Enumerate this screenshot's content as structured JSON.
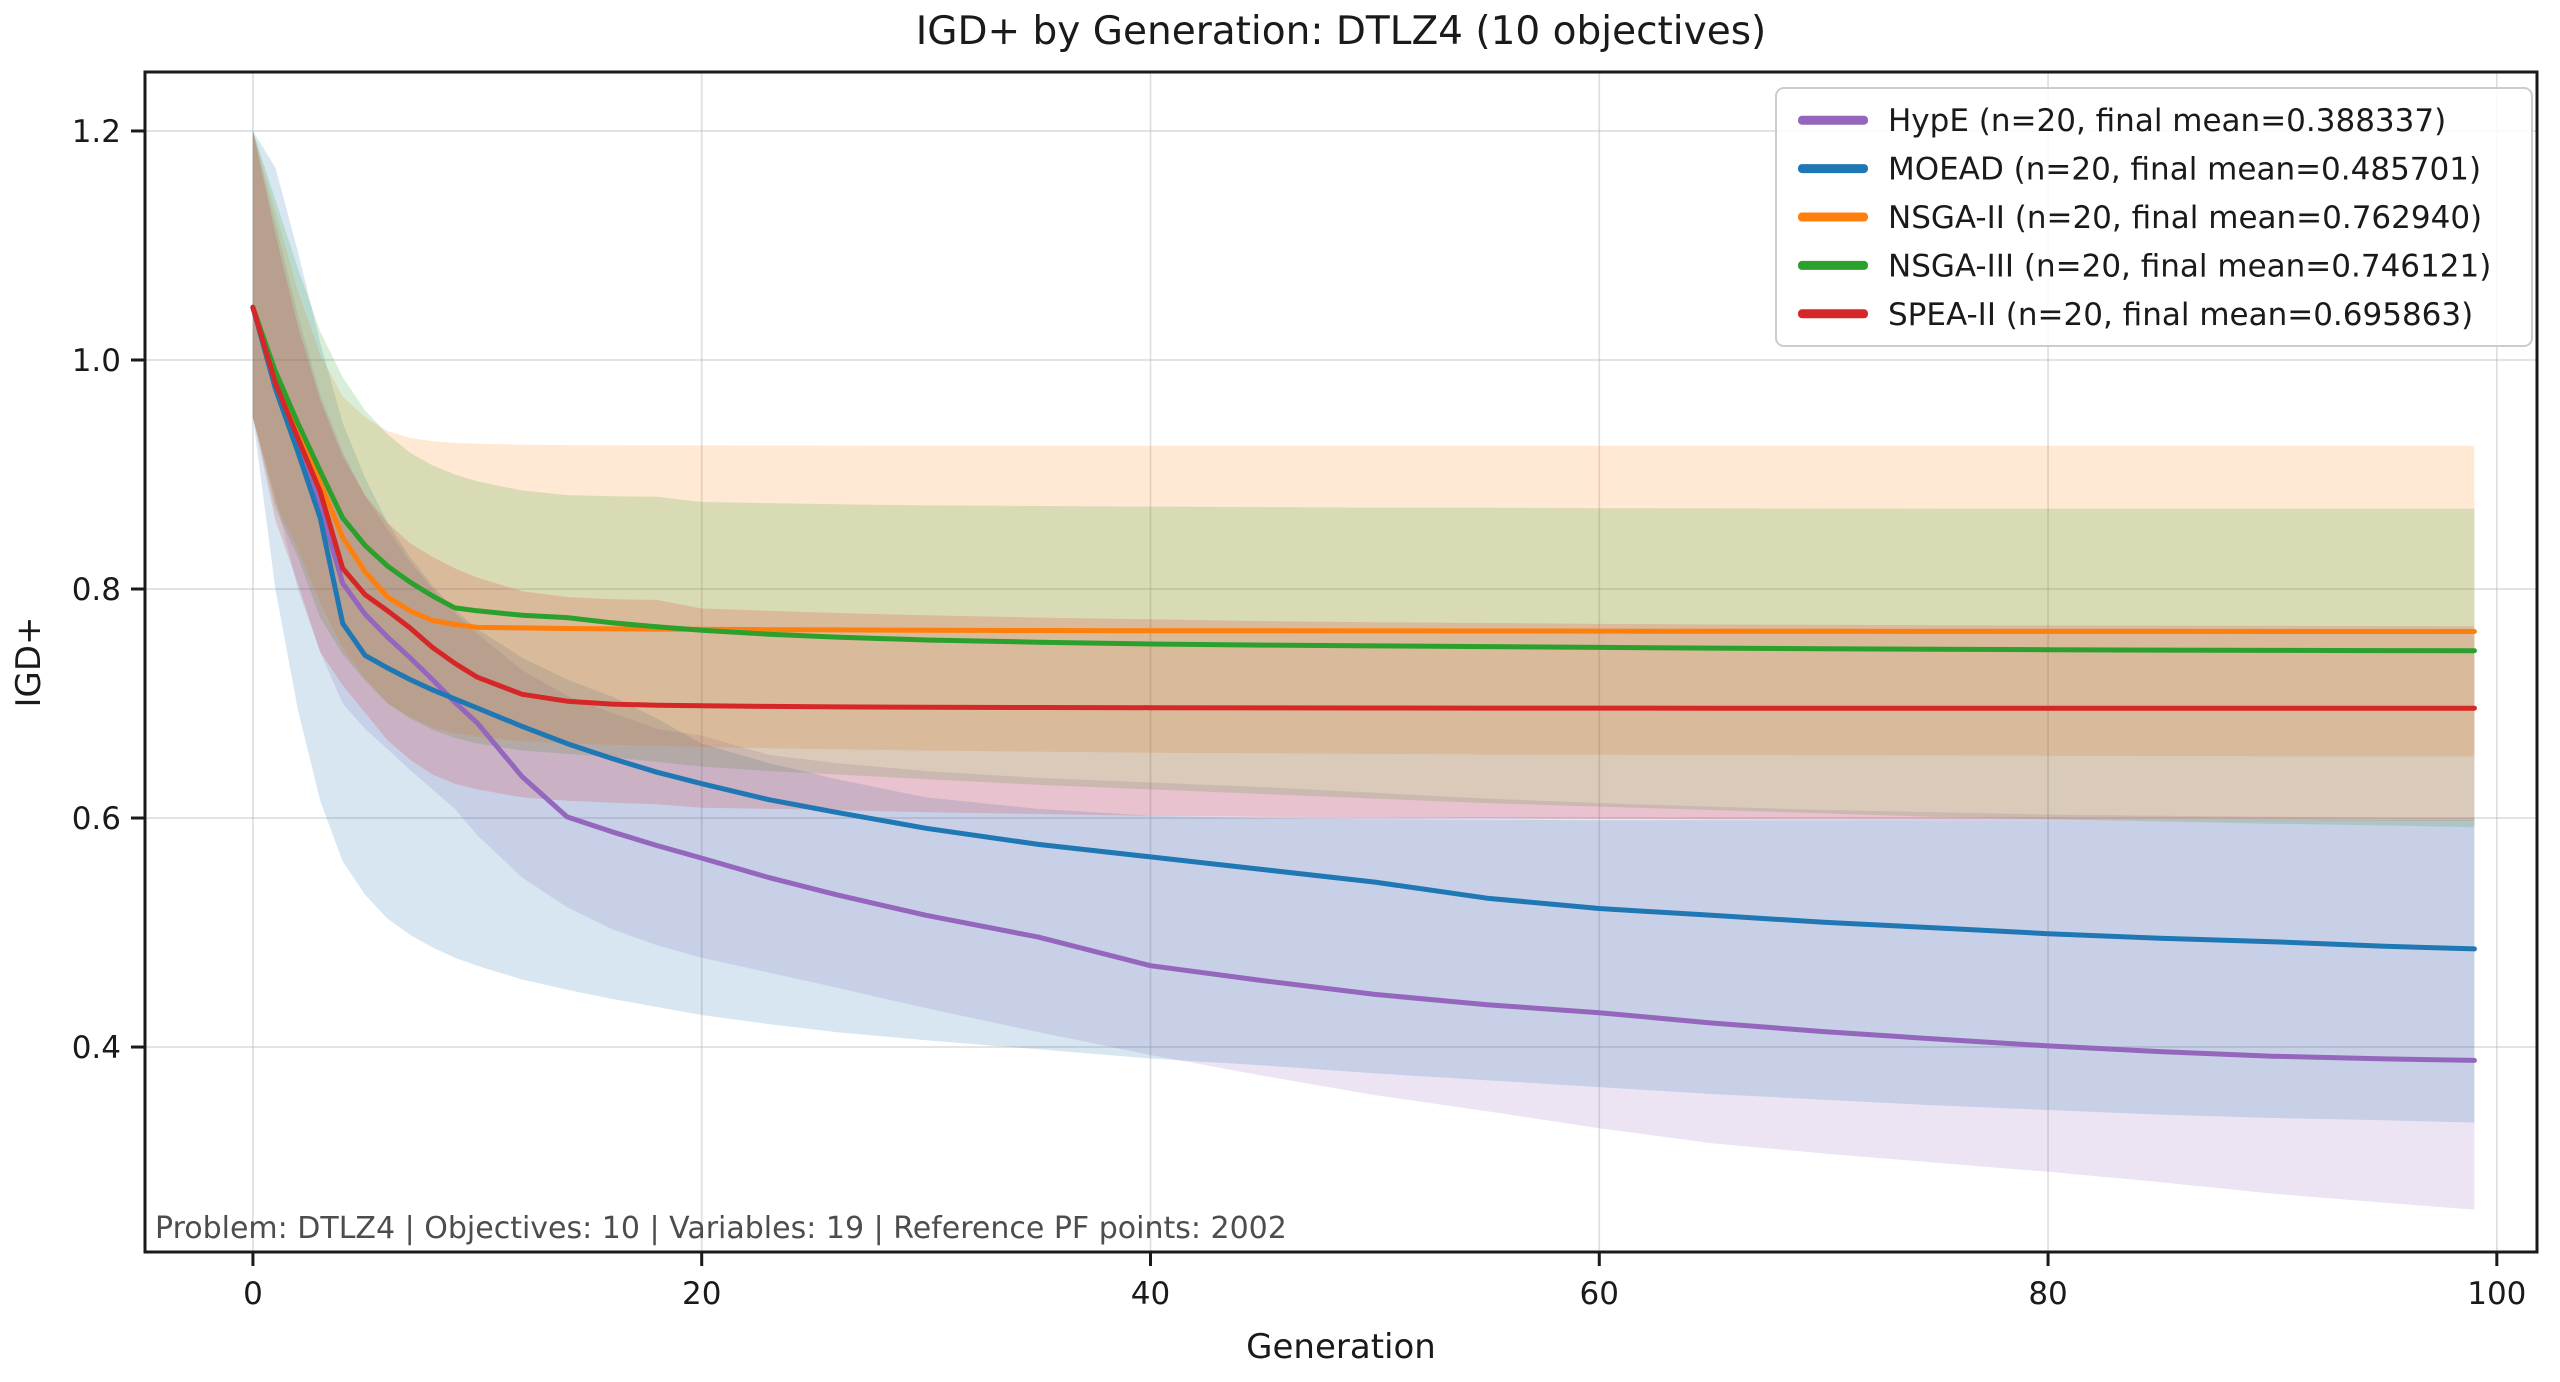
{
  "chart_data": {
    "type": "line",
    "title": "IGD+ by Generation: DTLZ4 (10 objectives)",
    "xlabel": "Generation",
    "ylabel": "IGD+",
    "annotation": "Problem: DTLZ4 | Objectives: 10 | Variables: 19 | Reference PF points: 2002",
    "x_ticks": [
      0,
      20,
      40,
      60,
      80,
      100
    ],
    "y_ticks": [
      0.4,
      0.6,
      0.8,
      1.0,
      1.2
    ],
    "xlim": [
      -4.81,
      101.79
    ],
    "ylim": [
      0.221,
      1.2515
    ],
    "grid": true,
    "legend_position": "upper right",
    "band_opacity": 0.18,
    "generations": [
      0,
      1,
      2,
      3,
      4,
      5,
      6,
      7,
      8,
      9,
      10,
      12,
      14,
      16,
      18,
      20,
      23,
      26,
      30,
      35,
      40,
      45,
      50,
      55,
      60,
      65,
      70,
      75,
      80,
      85,
      90,
      95,
      99
    ],
    "series": [
      {
        "name": "HypE",
        "label": "HypE (n=20, final mean=0.388337)",
        "color": "#9467bd",
        "final_mean": 0.388337,
        "n": 20,
        "mean": [
          1.046,
          0.978,
          0.928,
          0.872,
          0.805,
          0.778,
          0.758,
          0.74,
          0.721,
          0.701,
          0.683,
          0.636,
          0.601,
          0.588,
          0.576,
          0.565,
          0.548,
          0.533,
          0.515,
          0.496,
          0.471,
          0.458,
          0.446,
          0.437,
          0.43,
          0.421,
          0.4135,
          0.407,
          0.401,
          0.396,
          0.392,
          0.3896,
          0.3883
        ],
        "lower": [
          0.95,
          0.88,
          0.8,
          0.745,
          0.7,
          0.678,
          0.66,
          0.642,
          0.625,
          0.608,
          0.585,
          0.548,
          0.522,
          0.503,
          0.489,
          0.478,
          0.465,
          0.452,
          0.434,
          0.413,
          0.393,
          0.375,
          0.358,
          0.344,
          0.329,
          0.316,
          0.307,
          0.299,
          0.291,
          0.282,
          0.272,
          0.264,
          0.258
        ],
        "upper": [
          1.2,
          1.12,
          1.04,
          0.97,
          0.92,
          0.881,
          0.852,
          0.824,
          0.8,
          0.779,
          0.761,
          0.729,
          0.707,
          0.692,
          0.678,
          0.672,
          0.655,
          0.648,
          0.641,
          0.635,
          0.631,
          0.627,
          0.622,
          0.617,
          0.613,
          0.61,
          0.607,
          0.605,
          0.603,
          0.602,
          0.601,
          0.6,
          0.6
        ]
      },
      {
        "name": "MOEAD",
        "label": "MOEAD (n=20, final mean=0.485701)",
        "color": "#1f77b4",
        "final_mean": 0.485701,
        "n": 20,
        "mean": [
          1.046,
          0.975,
          0.92,
          0.862,
          0.77,
          0.742,
          0.731,
          0.721,
          0.712,
          0.704,
          0.696,
          0.68,
          0.665,
          0.652,
          0.64,
          0.63,
          0.616,
          0.605,
          0.591,
          0.577,
          0.566,
          0.555,
          0.544,
          0.53,
          0.521,
          0.515,
          0.509,
          0.504,
          0.499,
          0.495,
          0.492,
          0.488,
          0.4857
        ],
        "lower": [
          0.95,
          0.8,
          0.695,
          0.615,
          0.562,
          0.533,
          0.512,
          0.498,
          0.487,
          0.478,
          0.471,
          0.459,
          0.45,
          0.442,
          0.435,
          0.428,
          0.42,
          0.413,
          0.406,
          0.398,
          0.39,
          0.384,
          0.377,
          0.371,
          0.365,
          0.359,
          0.354,
          0.349,
          0.345,
          0.341,
          0.338,
          0.336,
          0.334
        ],
        "upper": [
          1.2,
          1.168,
          1.095,
          1.015,
          0.945,
          0.897,
          0.858,
          0.828,
          0.803,
          0.782,
          0.765,
          0.74,
          0.721,
          0.706,
          0.687,
          0.665,
          0.648,
          0.634,
          0.618,
          0.608,
          0.602,
          0.6,
          0.599,
          0.5985,
          0.598,
          0.598,
          0.598,
          0.598,
          0.598,
          0.598,
          0.598,
          0.598,
          0.598
        ]
      },
      {
        "name": "NSGA-II",
        "label": "NSGA-II (n=20, final mean=0.762940)",
        "color": "#ff7f0e",
        "final_mean": 0.76294,
        "n": 20,
        "mean": [
          1.046,
          0.985,
          0.938,
          0.893,
          0.845,
          0.815,
          0.793,
          0.781,
          0.7725,
          0.769,
          0.7665,
          0.766,
          0.7655,
          0.7652,
          0.765,
          0.7648,
          0.7645,
          0.7643,
          0.764,
          0.7638,
          0.7636,
          0.7635,
          0.7634,
          0.7633,
          0.7632,
          0.7631,
          0.7631,
          0.763,
          0.763,
          0.763,
          0.7629,
          0.7629,
          0.7629
        ],
        "lower": [
          0.95,
          0.875,
          0.835,
          0.788,
          0.748,
          0.722,
          0.7,
          0.688,
          0.679,
          0.674,
          0.671,
          0.667,
          0.665,
          0.664,
          0.663,
          0.662,
          0.661,
          0.66,
          0.659,
          0.658,
          0.657,
          0.6565,
          0.656,
          0.6555,
          0.6553,
          0.655,
          0.6548,
          0.6546,
          0.6544,
          0.6542,
          0.654,
          0.654,
          0.654
        ],
        "upper": [
          1.2,
          1.13,
          1.06,
          1.005,
          0.968,
          0.95,
          0.938,
          0.932,
          0.929,
          0.9275,
          0.9268,
          0.926,
          0.9257,
          0.9255,
          0.9254,
          0.9253,
          0.9252,
          0.9251,
          0.925,
          0.925,
          0.925,
          0.925,
          0.925,
          0.925,
          0.925,
          0.925,
          0.925,
          0.925,
          0.925,
          0.925,
          0.925,
          0.925,
          0.925
        ]
      },
      {
        "name": "NSGA-III",
        "label": "NSGA-III (n=20, final mean=0.746121)",
        "color": "#2ca02c",
        "final_mean": 0.746121,
        "n": 20,
        "mean": [
          1.046,
          0.99,
          0.945,
          0.903,
          0.862,
          0.838,
          0.82,
          0.806,
          0.794,
          0.7835,
          0.781,
          0.777,
          0.775,
          0.7705,
          0.767,
          0.764,
          0.7605,
          0.758,
          0.7555,
          0.7535,
          0.752,
          0.751,
          0.7503,
          0.7497,
          0.749,
          0.7484,
          0.7478,
          0.7473,
          0.747,
          0.7466,
          0.7464,
          0.7462,
          0.7461
        ],
        "lower": [
          0.95,
          0.87,
          0.828,
          0.775,
          0.743,
          0.72,
          0.7,
          0.687,
          0.677,
          0.67,
          0.665,
          0.659,
          0.656,
          0.653,
          0.649,
          0.645,
          0.641,
          0.638,
          0.634,
          0.629,
          0.625,
          0.621,
          0.617,
          0.613,
          0.61,
          0.607,
          0.604,
          0.601,
          0.599,
          0.597,
          0.595,
          0.5935,
          0.592
        ],
        "upper": [
          1.2,
          1.14,
          1.08,
          1.025,
          0.985,
          0.956,
          0.935,
          0.919,
          0.908,
          0.9,
          0.894,
          0.886,
          0.882,
          0.881,
          0.8805,
          0.876,
          0.875,
          0.874,
          0.873,
          0.8725,
          0.872,
          0.8715,
          0.871,
          0.871,
          0.8706,
          0.8704,
          0.8702,
          0.8701,
          0.87,
          0.87,
          0.87,
          0.87,
          0.87
        ]
      },
      {
        "name": "SPEA-II",
        "label": "SPEA-II (n=20, final mean=0.695863)",
        "color": "#d62728",
        "final_mean": 0.695863,
        "n": 20,
        "mean": [
          1.046,
          0.98,
          0.932,
          0.885,
          0.818,
          0.795,
          0.781,
          0.766,
          0.749,
          0.735,
          0.723,
          0.708,
          0.702,
          0.6995,
          0.6985,
          0.698,
          0.6975,
          0.697,
          0.6968,
          0.6965,
          0.6963,
          0.6962,
          0.6961,
          0.696,
          0.696,
          0.6959,
          0.6959,
          0.6959,
          0.6959,
          0.6959,
          0.6959,
          0.6959,
          0.6959
        ],
        "lower": [
          0.95,
          0.86,
          0.805,
          0.745,
          0.716,
          0.692,
          0.668,
          0.651,
          0.638,
          0.63,
          0.625,
          0.618,
          0.615,
          0.6135,
          0.612,
          0.609,
          0.608,
          0.607,
          0.605,
          0.6035,
          0.602,
          0.601,
          0.6005,
          0.6,
          0.5995,
          0.599,
          0.5988,
          0.5985,
          0.5982,
          0.598,
          0.5978,
          0.5976,
          0.5975
        ],
        "upper": [
          1.2,
          1.11,
          1.03,
          0.965,
          0.916,
          0.882,
          0.858,
          0.84,
          0.828,
          0.818,
          0.81,
          0.798,
          0.793,
          0.791,
          0.7905,
          0.783,
          0.781,
          0.779,
          0.777,
          0.775,
          0.7735,
          0.772,
          0.771,
          0.7703,
          0.7695,
          0.769,
          0.7687,
          0.7684,
          0.7682,
          0.768,
          0.7678,
          0.7676,
          0.7675
        ]
      }
    ]
  }
}
